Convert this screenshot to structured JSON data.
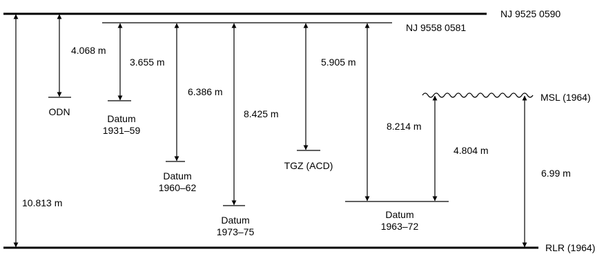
{
  "datum_lines": {
    "nj9525": "NJ 9525 0590",
    "nj9558": "NJ 9558 0581",
    "msl": "MSL (1964)",
    "rlr": "RLR (1964)"
  },
  "levels": {
    "odn": {
      "label": "ODN"
    },
    "d1931": {
      "line1": "Datum",
      "line2": "1931–59"
    },
    "d1960": {
      "line1": "Datum",
      "line2": "1960–62"
    },
    "d1973": {
      "line1": "Datum",
      "line2": "1973–75"
    },
    "tgz": {
      "label": "TGZ (ACD)"
    },
    "d1963": {
      "line1": "Datum",
      "line2": "1963–72"
    }
  },
  "measurements": {
    "nj9525_to_odn": "4.068 m",
    "nj9558_to_d1931": "3.655 m",
    "nj9558_to_d1960": "6.386 m",
    "nj9558_to_d1973": "8.425 m",
    "nj9558_to_tgz": "5.905 m",
    "nj9558_to_d1963": "8.214 m",
    "d1963_to_msl": "4.804 m",
    "nj9525_to_rlr": "10.813 m",
    "rlr_to_msl": "6.99 m"
  }
}
